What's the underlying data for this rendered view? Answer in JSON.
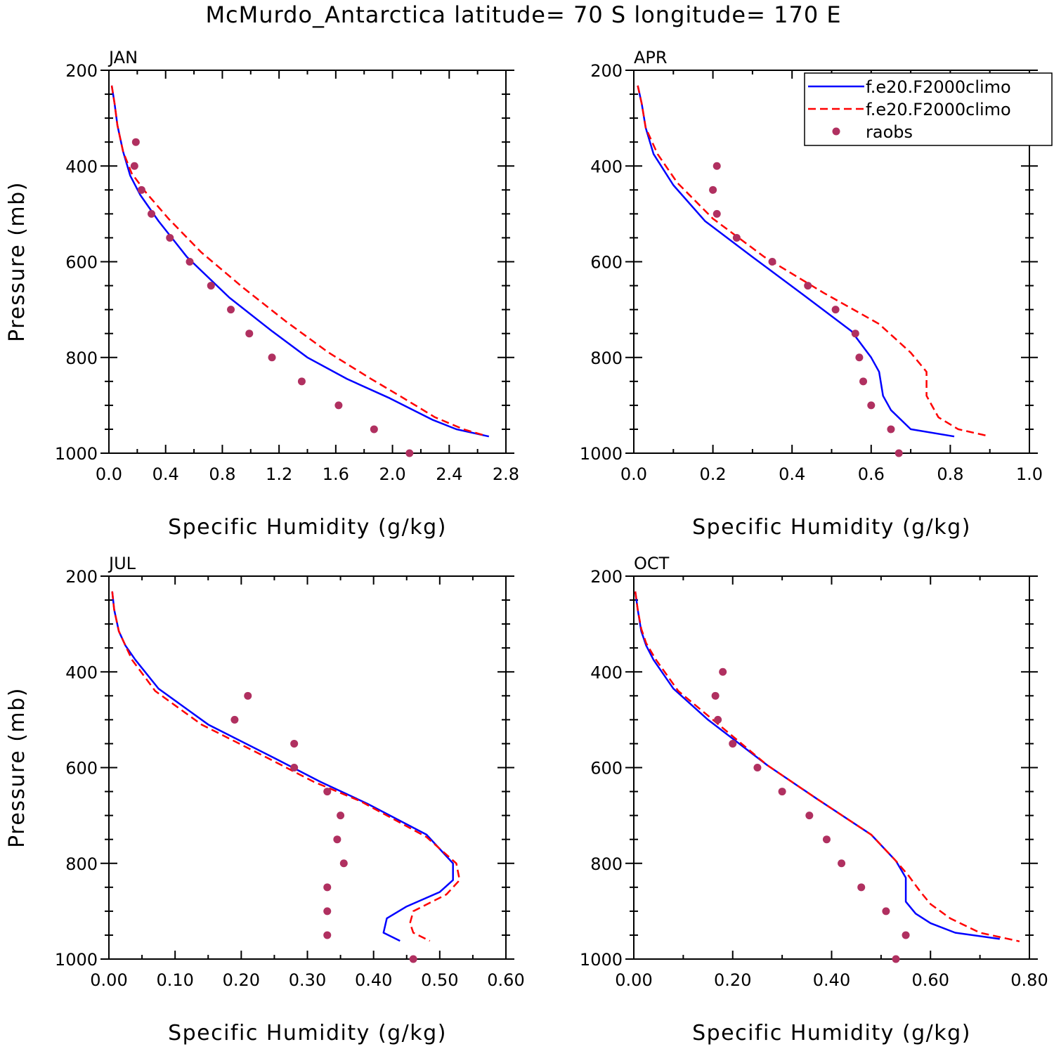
{
  "title": "McMurdo_Antarctica  latitude= 70 S longitude= 170 E",
  "colors": {
    "model_a": "#0000ff",
    "model_b": "#ff0000",
    "raobs": "#b03060"
  },
  "legend": {
    "placement": "inside top-right of APR panel",
    "entries": [
      {
        "label": "f.e20.F2000climo",
        "style": "solid line",
        "color": "#0000ff"
      },
      {
        "label": "f.e20.F2000climo",
        "style": "dashed line",
        "color": "#ff0000"
      },
      {
        "label": "raobs",
        "style": "dots",
        "color": "#b03060"
      }
    ]
  },
  "chart_data": [
    {
      "type": "line",
      "panel_title": "JAN",
      "xlabel": "Specific Humidity (g/kg)",
      "ylabel": "Pressure (mb)",
      "xlim": [
        0,
        2.8
      ],
      "ylim": [
        1000,
        200
      ],
      "y_inverted": true,
      "xticks": [
        0.0,
        0.4,
        0.8,
        1.2,
        1.6,
        2.0,
        2.4,
        2.8
      ],
      "xtick_labels": [
        "0.0",
        "0.4",
        "0.8",
        "1.2",
        "1.6",
        "2.0",
        "2.4",
        "2.8"
      ],
      "yticks": [
        200,
        400,
        600,
        800,
        1000
      ],
      "ytick_labels": [
        "200",
        "400",
        "600",
        "800",
        "1000"
      ],
      "series": [
        {
          "name": "f.e20.F2000climo",
          "style": "solid",
          "color": "#0000ff",
          "points": [
            [
              0.02,
              232
            ],
            [
              0.04,
              270
            ],
            [
              0.06,
              315
            ],
            [
              0.1,
              370
            ],
            [
              0.15,
              420
            ],
            [
              0.22,
              460
            ],
            [
              0.35,
              515
            ],
            [
              0.55,
              590
            ],
            [
              0.85,
              675
            ],
            [
              1.15,
              745
            ],
            [
              1.4,
              800
            ],
            [
              1.68,
              845
            ],
            [
              1.98,
              885
            ],
            [
              2.28,
              930
            ],
            [
              2.45,
              950
            ],
            [
              2.68,
              965
            ]
          ]
        },
        {
          "name": "f.e20.F2000climo",
          "style": "dashed",
          "color": "#ff0000",
          "points": [
            [
              0.02,
              232
            ],
            [
              0.04,
              270
            ],
            [
              0.06,
              315
            ],
            [
              0.1,
              370
            ],
            [
              0.16,
              415
            ],
            [
              0.26,
              455
            ],
            [
              0.42,
              510
            ],
            [
              0.65,
              580
            ],
            [
              0.95,
              655
            ],
            [
              1.25,
              725
            ],
            [
              1.55,
              790
            ],
            [
              1.85,
              845
            ],
            [
              2.05,
              880
            ],
            [
              2.3,
              925
            ],
            [
              2.5,
              950
            ],
            [
              2.65,
              963
            ]
          ]
        },
        {
          "name": "raobs",
          "style": "dots",
          "color": "#b03060",
          "points": [
            [
              0.19,
              350
            ],
            [
              0.18,
              400
            ],
            [
              0.23,
              450
            ],
            [
              0.3,
              500
            ],
            [
              0.43,
              550
            ],
            [
              0.57,
              600
            ],
            [
              0.72,
              650
            ],
            [
              0.86,
              700
            ],
            [
              0.99,
              750
            ],
            [
              1.15,
              800
            ],
            [
              1.36,
              850
            ],
            [
              1.62,
              900
            ],
            [
              1.87,
              950
            ],
            [
              2.12,
              1000
            ]
          ]
        }
      ]
    },
    {
      "type": "line",
      "panel_title": "APR",
      "xlabel": "Specific Humidity (g/kg)",
      "ylabel": "",
      "xlim": [
        0,
        1.0
      ],
      "ylim": [
        1000,
        200
      ],
      "y_inverted": true,
      "xticks": [
        0.0,
        0.2,
        0.4,
        0.6,
        0.8,
        1.0
      ],
      "xtick_labels": [
        "0.0",
        "0.2",
        "0.4",
        "0.6",
        "0.8",
        "1.0"
      ],
      "yticks": [
        200,
        400,
        600,
        800,
        1000
      ],
      "ytick_labels": [
        "200",
        "400",
        "600",
        "800",
        "1000"
      ],
      "series": [
        {
          "name": "f.e20.F2000climo",
          "style": "solid",
          "color": "#0000ff",
          "points": [
            [
              0.01,
              232
            ],
            [
              0.02,
              270
            ],
            [
              0.03,
              320
            ],
            [
              0.05,
              375
            ],
            [
              0.1,
              440
            ],
            [
              0.18,
              515
            ],
            [
              0.3,
              590
            ],
            [
              0.43,
              670
            ],
            [
              0.55,
              745
            ],
            [
              0.6,
              800
            ],
            [
              0.62,
              830
            ],
            [
              0.63,
              880
            ],
            [
              0.65,
              910
            ],
            [
              0.7,
              950
            ],
            [
              0.81,
              965
            ]
          ]
        },
        {
          "name": "f.e20.F2000climo",
          "style": "dashed",
          "color": "#ff0000",
          "points": [
            [
              0.01,
              232
            ],
            [
              0.02,
              270
            ],
            [
              0.03,
              320
            ],
            [
              0.06,
              375
            ],
            [
              0.11,
              435
            ],
            [
              0.2,
              510
            ],
            [
              0.33,
              590
            ],
            [
              0.48,
              665
            ],
            [
              0.62,
              730
            ],
            [
              0.7,
              790
            ],
            [
              0.74,
              830
            ],
            [
              0.74,
              880
            ],
            [
              0.77,
              925
            ],
            [
              0.82,
              950
            ],
            [
              0.89,
              963
            ]
          ]
        },
        {
          "name": "raobs",
          "style": "dots",
          "color": "#b03060",
          "points": [
            [
              0.21,
              400
            ],
            [
              0.2,
              450
            ],
            [
              0.21,
              500
            ],
            [
              0.26,
              550
            ],
            [
              0.35,
              600
            ],
            [
              0.44,
              650
            ],
            [
              0.51,
              700
            ],
            [
              0.56,
              750
            ],
            [
              0.57,
              800
            ],
            [
              0.58,
              850
            ],
            [
              0.6,
              900
            ],
            [
              0.65,
              950
            ],
            [
              0.67,
              1000
            ]
          ]
        }
      ]
    },
    {
      "type": "line",
      "panel_title": "JUL",
      "xlabel": "Specific Humidity (g/kg)",
      "ylabel": "Pressure (mb)",
      "xlim": [
        0,
        0.6
      ],
      "ylim": [
        1000,
        200
      ],
      "y_inverted": true,
      "xticks": [
        0.0,
        0.1,
        0.2,
        0.3,
        0.4,
        0.5,
        0.6
      ],
      "xtick_labels": [
        "0.00",
        "0.10",
        "0.20",
        "0.30",
        "0.40",
        "0.50",
        "0.60"
      ],
      "yticks": [
        200,
        400,
        600,
        800,
        1000
      ],
      "ytick_labels": [
        "200",
        "400",
        "600",
        "800",
        "1000"
      ],
      "series": [
        {
          "name": "f.e20.F2000climo",
          "style": "solid",
          "color": "#0000ff",
          "points": [
            [
              0.005,
              232
            ],
            [
              0.008,
              270
            ],
            [
              0.015,
              315
            ],
            [
              0.025,
              345
            ],
            [
              0.04,
              375
            ],
            [
              0.075,
              435
            ],
            [
              0.15,
              510
            ],
            [
              0.25,
              580
            ],
            [
              0.32,
              630
            ],
            [
              0.39,
              675
            ],
            [
              0.48,
              740
            ],
            [
              0.52,
              800
            ],
            [
              0.52,
              835
            ],
            [
              0.5,
              860
            ],
            [
              0.45,
              890
            ],
            [
              0.42,
              915
            ],
            [
              0.415,
              945
            ],
            [
              0.44,
              962
            ]
          ]
        },
        {
          "name": "f.e20.F2000climo",
          "style": "dashed",
          "color": "#ff0000",
          "points": [
            [
              0.005,
              232
            ],
            [
              0.008,
              270
            ],
            [
              0.015,
              315
            ],
            [
              0.025,
              345
            ],
            [
              0.035,
              375
            ],
            [
              0.07,
              440
            ],
            [
              0.14,
              510
            ],
            [
              0.24,
              580
            ],
            [
              0.31,
              630
            ],
            [
              0.38,
              670
            ],
            [
              0.48,
              745
            ],
            [
              0.525,
              800
            ],
            [
              0.53,
              835
            ],
            [
              0.51,
              865
            ],
            [
              0.46,
              900
            ],
            [
              0.455,
              925
            ],
            [
              0.46,
              945
            ],
            [
              0.485,
              962
            ]
          ]
        },
        {
          "name": "raobs",
          "style": "dots",
          "color": "#b03060",
          "points": [
            [
              0.21,
              450
            ],
            [
              0.19,
              500
            ],
            [
              0.28,
              550
            ],
            [
              0.28,
              600
            ],
            [
              0.33,
              650
            ],
            [
              0.35,
              700
            ],
            [
              0.345,
              750
            ],
            [
              0.355,
              800
            ],
            [
              0.33,
              850
            ],
            [
              0.33,
              900
            ],
            [
              0.33,
              950
            ],
            [
              0.46,
              1000
            ]
          ]
        }
      ]
    },
    {
      "type": "line",
      "panel_title": "OCT",
      "xlabel": "Specific Humidity (g/kg)",
      "ylabel": "",
      "xlim": [
        0,
        0.8
      ],
      "ylim": [
        1000,
        200
      ],
      "y_inverted": true,
      "xticks": [
        0.0,
        0.2,
        0.4,
        0.6,
        0.8
      ],
      "xtick_labels": [
        "0.00",
        "0.20",
        "0.40",
        "0.60",
        "0.80"
      ],
      "yticks": [
        200,
        400,
        600,
        800,
        1000
      ],
      "ytick_labels": [
        "200",
        "400",
        "600",
        "800",
        "1000"
      ],
      "series": [
        {
          "name": "f.e20.F2000climo",
          "style": "solid",
          "color": "#0000ff",
          "points": [
            [
              0.003,
              232
            ],
            [
              0.008,
              270
            ],
            [
              0.015,
              315
            ],
            [
              0.025,
              345
            ],
            [
              0.04,
              375
            ],
            [
              0.08,
              435
            ],
            [
              0.15,
              500
            ],
            [
              0.27,
              595
            ],
            [
              0.37,
              665
            ],
            [
              0.48,
              740
            ],
            [
              0.53,
              795
            ],
            [
              0.55,
              830
            ],
            [
              0.55,
              880
            ],
            [
              0.57,
              905
            ],
            [
              0.6,
              925
            ],
            [
              0.65,
              945
            ],
            [
              0.74,
              958
            ]
          ]
        },
        {
          "name": "f.e20.F2000climo",
          "style": "dashed",
          "color": "#ff0000",
          "points": [
            [
              0.003,
              232
            ],
            [
              0.008,
              270
            ],
            [
              0.015,
              310
            ],
            [
              0.025,
              340
            ],
            [
              0.045,
              375
            ],
            [
              0.09,
              440
            ],
            [
              0.16,
              500
            ],
            [
              0.27,
              595
            ],
            [
              0.37,
              665
            ],
            [
              0.48,
              740
            ],
            [
              0.53,
              795
            ],
            [
              0.555,
              825
            ],
            [
              0.58,
              860
            ],
            [
              0.6,
              885
            ],
            [
              0.64,
              915
            ],
            [
              0.7,
              945
            ],
            [
              0.78,
              963
            ]
          ]
        },
        {
          "name": "raobs",
          "style": "dots",
          "color": "#b03060",
          "points": [
            [
              0.18,
              400
            ],
            [
              0.165,
              450
            ],
            [
              0.17,
              500
            ],
            [
              0.2,
              550
            ],
            [
              0.25,
              600
            ],
            [
              0.3,
              650
            ],
            [
              0.355,
              700
            ],
            [
              0.39,
              750
            ],
            [
              0.42,
              800
            ],
            [
              0.46,
              850
            ],
            [
              0.51,
              900
            ],
            [
              0.55,
              950
            ],
            [
              0.53,
              1000
            ]
          ]
        }
      ]
    }
  ]
}
